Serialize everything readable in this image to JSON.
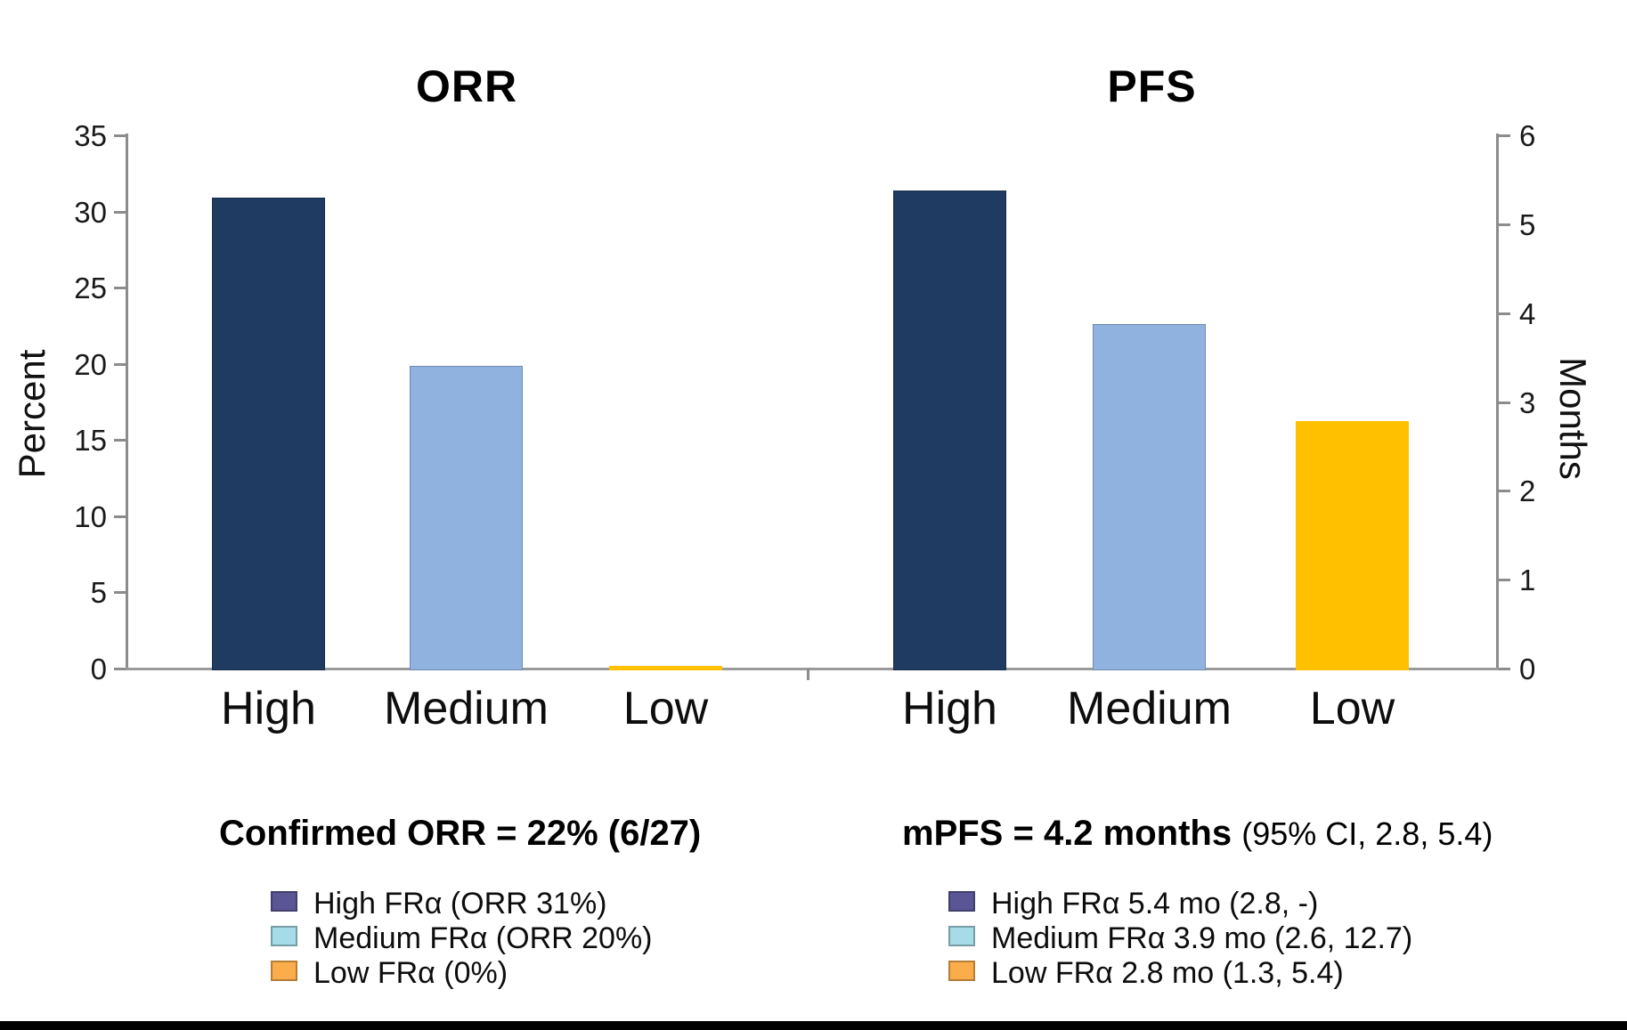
{
  "page": {
    "background": "#ffffff",
    "footer_bar_color": "#000000"
  },
  "axis_style": {
    "line_color": "#8c8c8c",
    "text_color": "#000000"
  },
  "chart_data": [
    {
      "type": "bar",
      "title": "ORR",
      "ylabel": "Percent",
      "xlabel": "",
      "ylim": [
        0,
        35
      ],
      "yticks": [
        0,
        5,
        10,
        15,
        20,
        25,
        30,
        35
      ],
      "yaxis_side": "left",
      "grid": false,
      "categories": [
        "High",
        "Medium",
        "Low"
      ],
      "values": [
        31,
        20,
        0
      ],
      "bar_colors": [
        "#1F3B61",
        "#8FB2DF",
        "#FFC000"
      ]
    },
    {
      "type": "bar",
      "title": "PFS",
      "ylabel": "Months",
      "xlabel": "",
      "ylim": [
        0,
        6
      ],
      "yticks": [
        0,
        1,
        2,
        3,
        4,
        5,
        6
      ],
      "yaxis_side": "right",
      "grid": false,
      "categories": [
        "High",
        "Medium",
        "Low"
      ],
      "values": [
        5.4,
        3.9,
        2.8
      ],
      "bar_colors": [
        "#1F3B61",
        "#8FB2DF",
        "#FFC000"
      ]
    }
  ],
  "orr_legend": {
    "title": "Confirmed ORR = 22% (6/27)",
    "items": [
      {
        "label": "High FRα (ORR 31%)",
        "swatch_color": "#5A5695"
      },
      {
        "label": "Medium FRα (ORR 20%)",
        "swatch_color": "#A6DBE8"
      },
      {
        "label": "Low FRα (0%)",
        "swatch_color": "#FBAD4C"
      }
    ]
  },
  "pfs_legend": {
    "title_bold": "mPFS = 4.2 months",
    "title_detail": "(95% CI, 2.8, 5.4)",
    "items": [
      {
        "label": "High FRα 5.4 mo (2.8, -)",
        "swatch_color": "#5A5695"
      },
      {
        "label": "Medium FRα 3.9 mo (2.6, 12.7)",
        "swatch_color": "#A6DBE8"
      },
      {
        "label": "Low FRα 2.8 mo (1.3, 5.4)",
        "swatch_color": "#FBAD4C"
      }
    ]
  }
}
